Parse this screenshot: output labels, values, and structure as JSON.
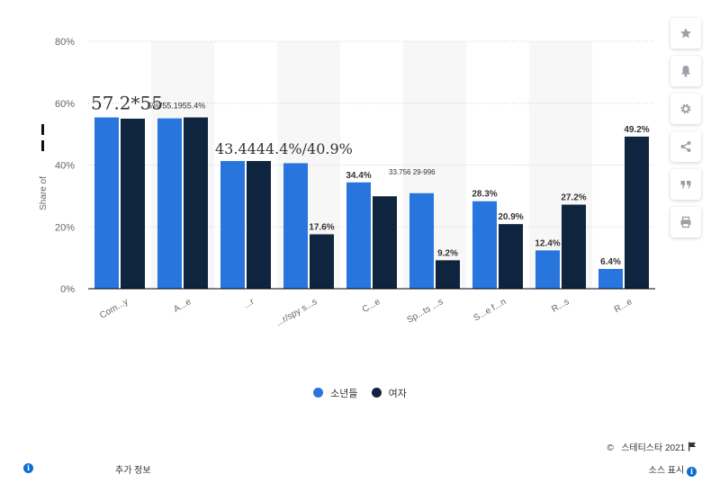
{
  "chart_data": {
    "type": "bar",
    "ylabel": "Share of",
    "ylim": [
      0,
      80
    ],
    "y_ticks": [
      "0%",
      "20%",
      "40%",
      "60%",
      "80%"
    ],
    "categories": [
      "Comedy",
      "Action",
      "Horror",
      "Action/spy",
      "Crime",
      "Sports",
      "Science fiction",
      "Romantic",
      "Romance"
    ],
    "category_labels_visible": [
      "Com...y",
      "A...e",
      "...r",
      "...r/spy s...s",
      "C...e",
      "Sp...ts ...s",
      "S...e f...n",
      "R...s",
      "R...e"
    ],
    "series": [
      {
        "name": "소년들",
        "values": [
          55.4,
          55.1,
          41.3,
          40.6,
          34.4,
          30.9,
          28.3,
          12.4,
          6.4
        ]
      },
      {
        "name": "여자",
        "values": [
          55.0,
          55.4,
          41.3,
          17.6,
          29.9,
          9.2,
          20.9,
          27.2,
          49.2
        ]
      }
    ],
    "value_labels": [
      {
        "bar": "0-0",
        "text": "57.2*55"
      },
      {
        "bar": "1-0",
        "text": "5%\"55.1955.4%"
      },
      {
        "bar": "2-0",
        "text": "43.4444.4%/40.9%"
      },
      {
        "bar": "3-1",
        "text": "17.6%"
      },
      {
        "bar": "4-0",
        "text": "34.4%"
      },
      {
        "bar": "4-1",
        "text": "33.756 29-996"
      },
      {
        "bar": "5-1",
        "text": "9.2%"
      },
      {
        "bar": "6-0",
        "text": "28.3%"
      },
      {
        "bar": "6-1",
        "text": "20.9%"
      },
      {
        "bar": "7-0",
        "text": "12.4%"
      },
      {
        "bar": "7-1",
        "text": "27.2%"
      },
      {
        "bar": "8-0",
        "text": "6.4%"
      },
      {
        "bar": "8-1",
        "text": "49.2%"
      }
    ],
    "colors": {
      "series1": "#2876dd",
      "series2": "#0f243e",
      "band": "#f7f7f7",
      "grid": "#cfcfcf",
      "axis": "#000000"
    },
    "grid": true,
    "legend_position": "bottom"
  },
  "legend": {
    "series1": "소년들",
    "series2": "여자"
  },
  "toolbar": {
    "icons": [
      "star-icon",
      "bell-icon",
      "gear-icon",
      "share-icon",
      "quote-icon",
      "print-icon"
    ]
  },
  "footer": {
    "copyright_symbol": "©",
    "copyright": "스테티스타 2021",
    "more_info": "추가 정보",
    "show_source": "소스 표시"
  }
}
